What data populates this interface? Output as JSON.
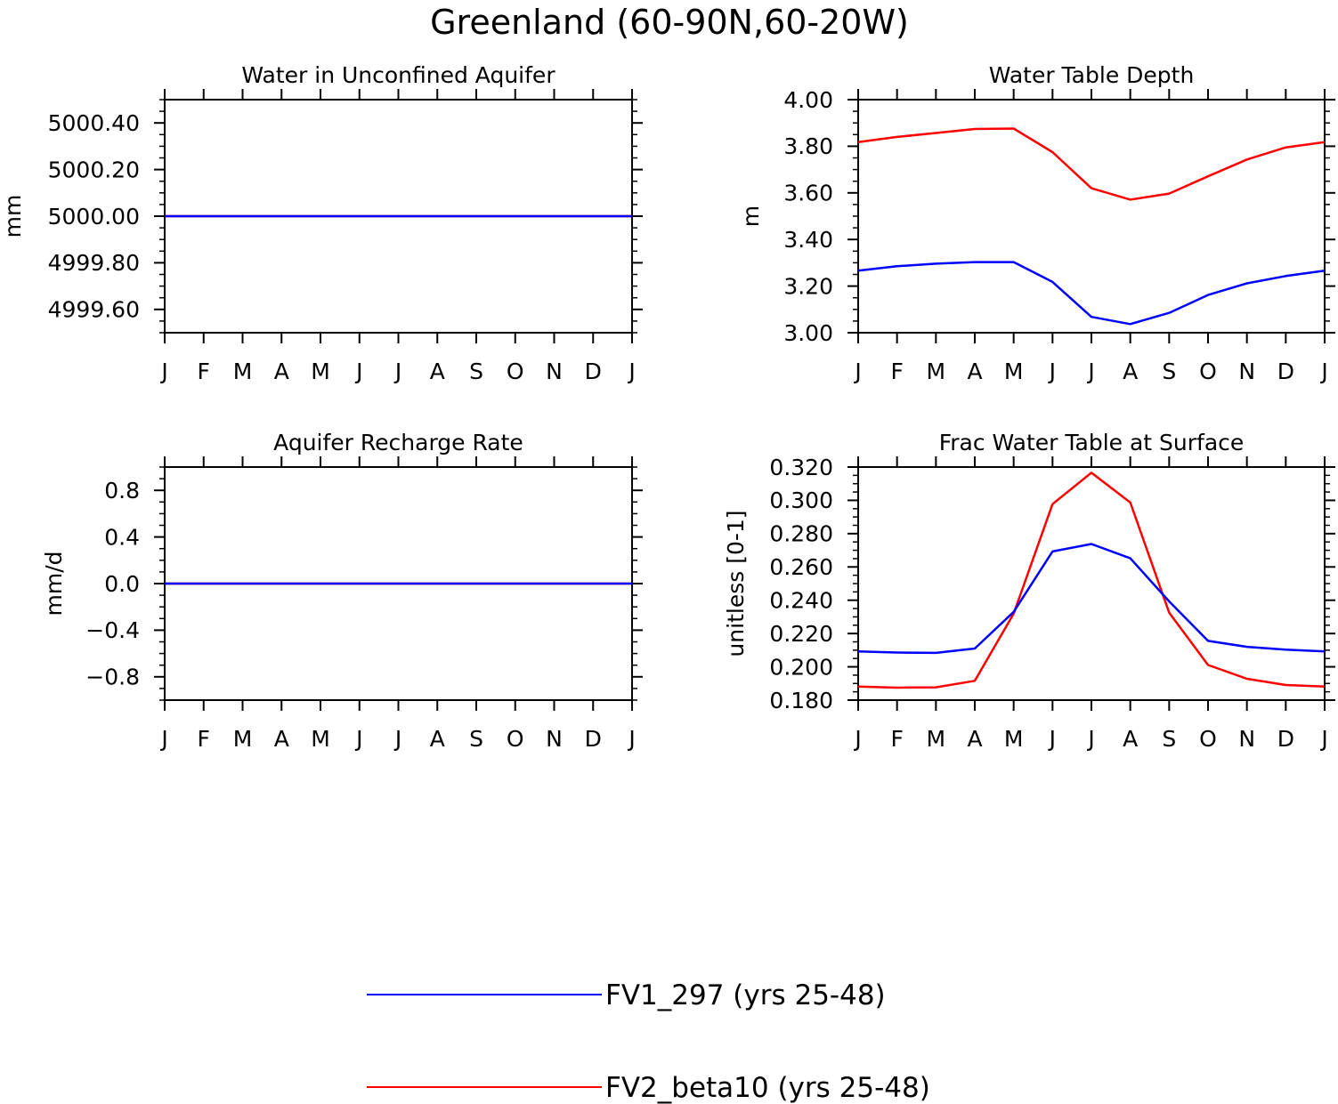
{
  "title": "Greenland (60-90N,60-20W)",
  "colors": {
    "series1": "#0000ff",
    "series2": "#ff0000",
    "axis": "#000000"
  },
  "legend": {
    "entries": [
      {
        "label": "FV1_297 (yrs 25-48)",
        "color": "#0000ff"
      },
      {
        "label": "FV2_beta10 (yrs 25-48)",
        "color": "#ff0000"
      }
    ]
  },
  "chart_data": [
    {
      "type": "line",
      "title": "Water in Unconfined Aquifer",
      "xlabel": "",
      "ylabel": "mm",
      "categories": [
        "J",
        "F",
        "M",
        "A",
        "M",
        "J",
        "J",
        "A",
        "S",
        "O",
        "N",
        "D",
        "J"
      ],
      "ylim": [
        4999.5,
        5000.5
      ],
      "yticks": [
        4999.6,
        4999.8,
        5000.0,
        5000.2,
        5000.4
      ],
      "ytick_labels": [
        "4999.60",
        "4999.80",
        "5000.00",
        "5000.20",
        "5000.40"
      ],
      "series": [
        {
          "name": "FV1_297 (yrs 25-48)",
          "values": [
            5000,
            5000,
            5000,
            5000,
            5000,
            5000,
            5000,
            5000,
            5000,
            5000,
            5000,
            5000,
            5000
          ]
        },
        {
          "name": "FV2_beta10 (yrs 25-48)",
          "values": [
            5000,
            5000,
            5000,
            5000,
            5000,
            5000,
            5000,
            5000,
            5000,
            5000,
            5000,
            5000,
            5000
          ]
        }
      ]
    },
    {
      "type": "line",
      "title": "Water Table Depth",
      "xlabel": "",
      "ylabel": "m",
      "categories": [
        "J",
        "F",
        "M",
        "A",
        "M",
        "J",
        "J",
        "A",
        "S",
        "O",
        "N",
        "D",
        "J"
      ],
      "ylim": [
        3.0,
        4.0
      ],
      "yticks": [
        3.0,
        3.2,
        3.4,
        3.6,
        3.8,
        4.0
      ],
      "ytick_labels": [
        "3.00",
        "3.20",
        "3.40",
        "3.60",
        "3.80",
        "4.00"
      ],
      "series": [
        {
          "name": "FV1_297 (yrs 25-48)",
          "values": [
            3.266,
            3.285,
            3.296,
            3.303,
            3.303,
            3.218,
            3.068,
            3.037,
            3.085,
            3.162,
            3.212,
            3.243,
            3.266
          ]
        },
        {
          "name": "FV2_beta10 (yrs 25-48)",
          "values": [
            3.818,
            3.84,
            3.857,
            3.874,
            3.876,
            3.775,
            3.62,
            3.571,
            3.597,
            3.671,
            3.743,
            3.795,
            3.818
          ]
        }
      ]
    },
    {
      "type": "line",
      "title": "Aquifer Recharge Rate",
      "xlabel": "",
      "ylabel": "mm/d",
      "categories": [
        "J",
        "F",
        "M",
        "A",
        "M",
        "J",
        "J",
        "A",
        "S",
        "O",
        "N",
        "D",
        "J"
      ],
      "ylim": [
        -1.0,
        1.0
      ],
      "yticks": [
        -0.8,
        -0.4,
        0.0,
        0.4,
        0.8
      ],
      "ytick_labels": [
        "−0.8",
        "−0.4",
        "0.0",
        "0.4",
        "0.8"
      ],
      "series": [
        {
          "name": "FV1_297 (yrs 25-48)",
          "values": [
            0,
            0,
            0,
            0,
            0,
            0,
            0,
            0,
            0,
            0,
            0,
            0,
            0
          ]
        },
        {
          "name": "FV2_beta10 (yrs 25-48)",
          "values": [
            0,
            0,
            0,
            0,
            0,
            0,
            0,
            0,
            0,
            0,
            0,
            0,
            0
          ]
        }
      ]
    },
    {
      "type": "line",
      "title": "Frac Water Table at Surface",
      "xlabel": "",
      "ylabel": "unitless [0-1]",
      "categories": [
        "J",
        "F",
        "M",
        "A",
        "M",
        "J",
        "J",
        "A",
        "S",
        "O",
        "N",
        "D",
        "J"
      ],
      "ylim": [
        0.18,
        0.32
      ],
      "yticks": [
        0.18,
        0.2,
        0.22,
        0.24,
        0.26,
        0.28,
        0.3,
        0.32
      ],
      "ytick_labels": [
        "0.180",
        "0.200",
        "0.220",
        "0.240",
        "0.260",
        "0.280",
        "0.300",
        "0.320"
      ],
      "series": [
        {
          "name": "FV1_297 (yrs 25-48)",
          "values": [
            0.2093,
            0.2086,
            0.2084,
            0.211,
            0.233,
            0.2693,
            0.2738,
            0.2652,
            0.2393,
            0.2156,
            0.212,
            0.2103,
            0.2093
          ]
        },
        {
          "name": "FV2_beta10 (yrs 25-48)",
          "values": [
            0.1881,
            0.1875,
            0.1877,
            0.1916,
            0.232,
            0.2977,
            0.3166,
            0.2987,
            0.2326,
            0.2011,
            0.1928,
            0.1891,
            0.1881
          ]
        }
      ]
    }
  ]
}
